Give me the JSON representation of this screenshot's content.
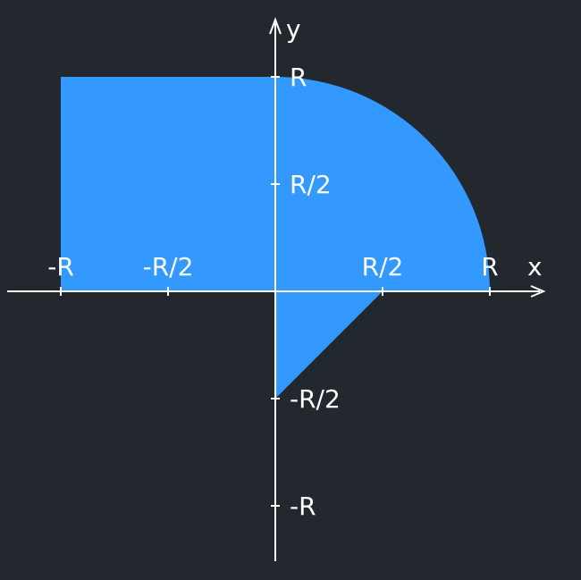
{
  "diagram": {
    "axes": {
      "x_name": "x",
      "y_name": "y",
      "x_ticks": [
        {
          "value": -1,
          "label": "-R"
        },
        {
          "value": -0.5,
          "label": "-R/2"
        },
        {
          "value": 0.5,
          "label": "R/2"
        },
        {
          "value": 1,
          "label": "R"
        }
      ],
      "y_ticks": [
        {
          "value": 1,
          "label": "R"
        },
        {
          "value": 0.5,
          "label": "R/2"
        },
        {
          "value": -0.5,
          "label": "-R/2"
        },
        {
          "value": -1,
          "label": "-R"
        }
      ]
    },
    "region": {
      "quadrant_2": {
        "shape": "rectangle",
        "x_range": [
          -1,
          0
        ],
        "y_range": [
          0,
          1
        ]
      },
      "quadrant_1": {
        "shape": "quarter-circle",
        "radius": 1
      },
      "quadrant_4": {
        "shape": "triangle",
        "vertices": [
          [
            0,
            0
          ],
          [
            0.5,
            0
          ],
          [
            0,
            -0.5
          ]
        ]
      }
    },
    "colors": {
      "background": "#23272e",
      "region_fill": "#3399ff",
      "axis": "#ffffff"
    }
  }
}
